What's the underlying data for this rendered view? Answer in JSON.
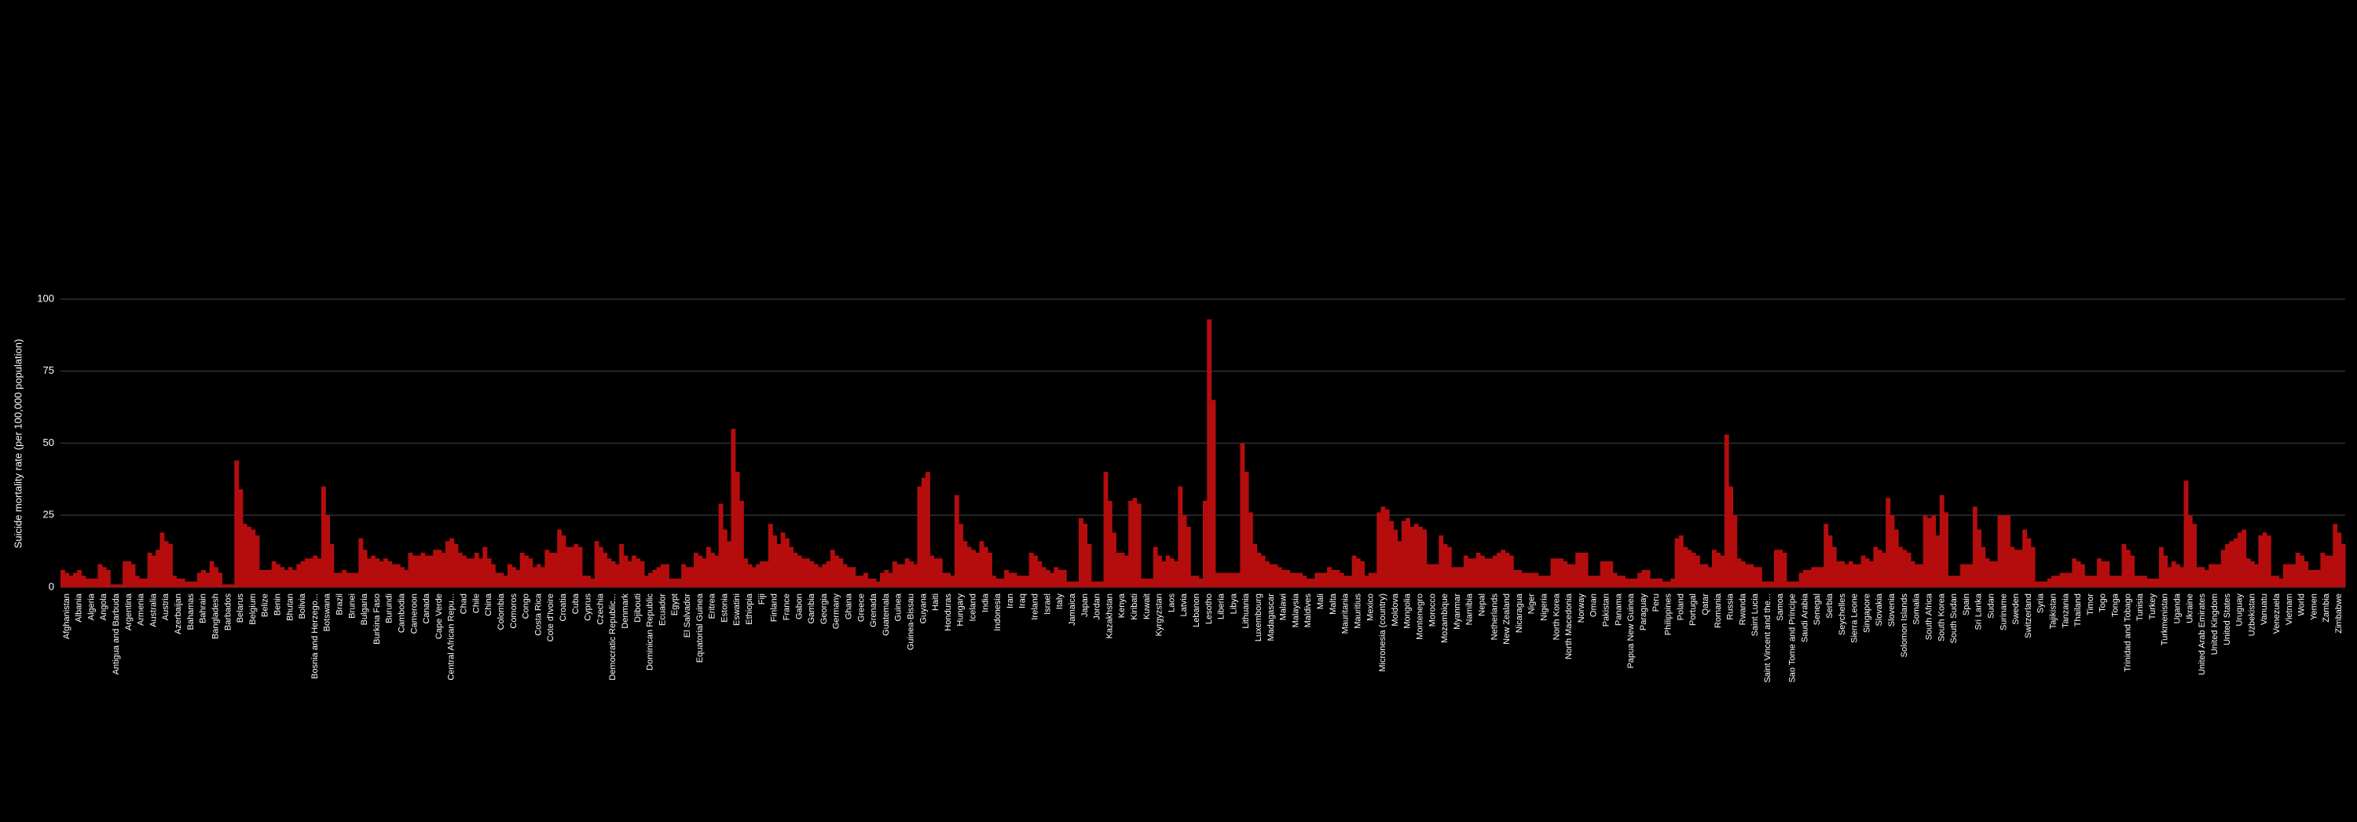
{
  "chart_data": {
    "type": "bar",
    "y_label": "Suicide mortality rate (per 100,000 population)",
    "ylim": [
      0,
      100
    ],
    "yticks": [
      0,
      25,
      50,
      75,
      100
    ],
    "grid": true,
    "color": "#b50d0d",
    "categories": [
      "Afghanistan",
      "Albania",
      "Algeria",
      "Angola",
      "Antigua and Barbuda",
      "Argentina",
      "Armenia",
      "Australia",
      "Austria",
      "Azerbaijan",
      "Bahamas",
      "Bahrain",
      "Bangladesh",
      "Barbados",
      "Belarus",
      "Belgium",
      "Belize",
      "Benin",
      "Bhutan",
      "Bolivia",
      "Bosnia and Herzego...",
      "Botswana",
      "Brazil",
      "Brunei",
      "Bulgaria",
      "Burkina Faso",
      "Burundi",
      "Cambodia",
      "Cameroon",
      "Canada",
      "Cape Verde",
      "Central African Repu...",
      "Chad",
      "Chile",
      "China",
      "Colombia",
      "Comoros",
      "Congo",
      "Costa Rica",
      "Cote d'Ivoire",
      "Croatia",
      "Cuba",
      "Cyprus",
      "Czechia",
      "Democratic Republic...",
      "Denmark",
      "Djibouti",
      "Dominican Republic",
      "Ecuador",
      "Egypt",
      "El Salvador",
      "Equatorial Guinea",
      "Eritrea",
      "Estonia",
      "Eswatini",
      "Ethiopia",
      "Fiji",
      "Finland",
      "France",
      "Gabon",
      "Gambia",
      "Georgia",
      "Germany",
      "Ghana",
      "Greece",
      "Grenada",
      "Guatemala",
      "Guinea",
      "Guinea-Bissau",
      "Guyana",
      "Haiti",
      "Honduras",
      "Hungary",
      "Iceland",
      "India",
      "Indonesia",
      "Iran",
      "Iraq",
      "Ireland",
      "Israel",
      "Italy",
      "Jamaica",
      "Japan",
      "Jordan",
      "Kazakhstan",
      "Kenya",
      "Kiribati",
      "Kuwait",
      "Kyrgyzstan",
      "Laos",
      "Latvia",
      "Lebanon",
      "Lesotho",
      "Liberia",
      "Libya",
      "Lithuania",
      "Luxembourg",
      "Madagascar",
      "Malawi",
      "Malaysia",
      "Maldives",
      "Mali",
      "Malta",
      "Mauritania",
      "Mauritius",
      "Mexico",
      "Micronesia (country)",
      "Moldova",
      "Mongolia",
      "Montenegro",
      "Morocco",
      "Mozambique",
      "Myanmar",
      "Namibia",
      "Nepal",
      "Netherlands",
      "New Zealand",
      "Nicaragua",
      "Niger",
      "Nigeria",
      "North Korea",
      "North Macedonia",
      "Norway",
      "Oman",
      "Pakistan",
      "Panama",
      "Papua New Guinea",
      "Paraguay",
      "Peru",
      "Philippines",
      "Poland",
      "Portugal",
      "Qatar",
      "Romania",
      "Russia",
      "Rwanda",
      "Saint Lucia",
      "Saint Vincent and the...",
      "Samoa",
      "Sao Tome and Principe",
      "Saudi Arabia",
      "Senegal",
      "Serbia",
      "Seychelles",
      "Sierra Leone",
      "Singapore",
      "Slovakia",
      "Slovenia",
      "Solomon Islands",
      "Somalia",
      "South Africa",
      "South Korea",
      "South Sudan",
      "Spain",
      "Sri Lanka",
      "Sudan",
      "Suriname",
      "Sweden",
      "Switzerland",
      "Syria",
      "Tajikistan",
      "Tanzania",
      "Thailand",
      "Timor",
      "Togo",
      "Tonga",
      "Trinidad and Tobago",
      "Tunisia",
      "Turkey",
      "Turkmenistan",
      "Uganda",
      "Ukraine",
      "United Arab Emirates",
      "United Kingdom",
      "United States",
      "Uruguay",
      "Uzbekistan",
      "Vanuatu",
      "Venezuela",
      "Vietnam",
      "World",
      "Yemen",
      "Zambia",
      "Zimbabwe"
    ],
    "values": [
      [
        6,
        5,
        4
      ],
      [
        5,
        6,
        4
      ],
      [
        3,
        3,
        3
      ],
      [
        8,
        7,
        6
      ],
      [
        1,
        1,
        1
      ],
      [
        9,
        9,
        8
      ],
      [
        4,
        3,
        3
      ],
      [
        12,
        11,
        13
      ],
      [
        19,
        16,
        15
      ],
      [
        4,
        3,
        3
      ],
      [
        2,
        2,
        2
      ],
      [
        5,
        6,
        5
      ],
      [
        9,
        7,
        5
      ],
      [
        1,
        1,
        1
      ],
      [
        44,
        34,
        22
      ],
      [
        21,
        20,
        18
      ],
      [
        6,
        6,
        6
      ],
      [
        9,
        8,
        7
      ],
      [
        6,
        7,
        6
      ],
      [
        8,
        9,
        10
      ],
      [
        10,
        11,
        10
      ],
      [
        35,
        25,
        15
      ],
      [
        5,
        5,
        6
      ],
      [
        5,
        5,
        5
      ],
      [
        17,
        13,
        10
      ],
      [
        11,
        10,
        9
      ],
      [
        10,
        9,
        8
      ],
      [
        8,
        7,
        6
      ],
      [
        12,
        11,
        11
      ],
      [
        12,
        11,
        11
      ],
      [
        13,
        13,
        12
      ],
      [
        16,
        17,
        15
      ],
      [
        12,
        11,
        10
      ],
      [
        10,
        12,
        10
      ],
      [
        14,
        10,
        8
      ],
      [
        5,
        5,
        4
      ],
      [
        8,
        7,
        6
      ],
      [
        12,
        11,
        10
      ],
      [
        7,
        8,
        7
      ],
      [
        13,
        12,
        12
      ],
      [
        20,
        18,
        14
      ],
      [
        14,
        15,
        14
      ],
      [
        4,
        4,
        3
      ],
      [
        16,
        14,
        12
      ],
      [
        10,
        9,
        8
      ],
      [
        15,
        11,
        9
      ],
      [
        11,
        10,
        9
      ],
      [
        4,
        5,
        6
      ],
      [
        7,
        8,
        8
      ],
      [
        3,
        3,
        3
      ],
      [
        8,
        7,
        7
      ],
      [
        12,
        11,
        10
      ],
      [
        14,
        12,
        11
      ],
      [
        29,
        20,
        16
      ],
      [
        55,
        40,
        30
      ],
      [
        10,
        8,
        7
      ],
      [
        8,
        9,
        9
      ],
      [
        22,
        18,
        15
      ],
      [
        19,
        17,
        14
      ],
      [
        12,
        11,
        10
      ],
      [
        10,
        9,
        8
      ],
      [
        7,
        8,
        9
      ],
      [
        13,
        11,
        10
      ],
      [
        8,
        7,
        7
      ],
      [
        4,
        4,
        5
      ],
      [
        3,
        3,
        2
      ],
      [
        5,
        6,
        5
      ],
      [
        9,
        8,
        8
      ],
      [
        10,
        9,
        8
      ],
      [
        35,
        38,
        40
      ],
      [
        11,
        10,
        10
      ],
      [
        5,
        5,
        4
      ],
      [
        32,
        22,
        16
      ],
      [
        14,
        13,
        12
      ],
      [
        16,
        14,
        12
      ],
      [
        4,
        3,
        3
      ],
      [
        6,
        5,
        5
      ],
      [
        4,
        4,
        4
      ],
      [
        12,
        11,
        9
      ],
      [
        7,
        6,
        5
      ],
      [
        7,
        6,
        6
      ],
      [
        2,
        2,
        2
      ],
      [
        24,
        22,
        15
      ],
      [
        2,
        2,
        2
      ],
      [
        40,
        30,
        19
      ],
      [
        12,
        12,
        11
      ],
      [
        30,
        31,
        29
      ],
      [
        3,
        3,
        3
      ],
      [
        14,
        11,
        9
      ],
      [
        11,
        10,
        9
      ],
      [
        35,
        25,
        21
      ],
      [
        4,
        4,
        3
      ],
      [
        30,
        93,
        65
      ],
      [
        5,
        5,
        5
      ],
      [
        5,
        5,
        5
      ],
      [
        50,
        40,
        26
      ],
      [
        15,
        12,
        11
      ],
      [
        9,
        8,
        8
      ],
      [
        7,
        6,
        6
      ],
      [
        5,
        5,
        5
      ],
      [
        4,
        3,
        3
      ],
      [
        5,
        5,
        5
      ],
      [
        7,
        6,
        6
      ],
      [
        5,
        4,
        4
      ],
      [
        11,
        10,
        9
      ],
      [
        4,
        5,
        5
      ],
      [
        26,
        28,
        27
      ],
      [
        23,
        20,
        16
      ],
      [
        23,
        24,
        21
      ],
      [
        22,
        21,
        20
      ],
      [
        8,
        8,
        8
      ],
      [
        18,
        15,
        14
      ],
      [
        7,
        7,
        7
      ],
      [
        11,
        10,
        10
      ],
      [
        12,
        11,
        10
      ],
      [
        10,
        11,
        12
      ],
      [
        13,
        12,
        11
      ],
      [
        6,
        6,
        5
      ],
      [
        5,
        5,
        5
      ],
      [
        4,
        4,
        4
      ],
      [
        10,
        10,
        10
      ],
      [
        9,
        8,
        8
      ],
      [
        12,
        12,
        12
      ],
      [
        4,
        4,
        4
      ],
      [
        9,
        9,
        9
      ],
      [
        5,
        4,
        4
      ],
      [
        3,
        3,
        3
      ],
      [
        5,
        6,
        6
      ],
      [
        3,
        3,
        3
      ],
      [
        2,
        2,
        3
      ],
      [
        17,
        18,
        14
      ],
      [
        13,
        12,
        11
      ],
      [
        8,
        8,
        7
      ],
      [
        13,
        12,
        11
      ],
      [
        53,
        35,
        25
      ],
      [
        10,
        9,
        8
      ],
      [
        8,
        7,
        7
      ],
      [
        2,
        2,
        2
      ],
      [
        13,
        13,
        12
      ],
      [
        2,
        2,
        2
      ],
      [
        5,
        6,
        6
      ],
      [
        7,
        7,
        7
      ],
      [
        22,
        18,
        14
      ],
      [
        9,
        9,
        8
      ],
      [
        9,
        8,
        8
      ],
      [
        11,
        10,
        9
      ],
      [
        14,
        13,
        12
      ],
      [
        31,
        25,
        20
      ],
      [
        14,
        13,
        12
      ],
      [
        9,
        8,
        8
      ],
      [
        25,
        24,
        25
      ],
      [
        18,
        32,
        26
      ],
      [
        4,
        4,
        4
      ],
      [
        8,
        8,
        8
      ],
      [
        28,
        20,
        14
      ],
      [
        10,
        9,
        9
      ],
      [
        25,
        25,
        25
      ],
      [
        14,
        13,
        13
      ],
      [
        20,
        17,
        14
      ],
      [
        2,
        2,
        2
      ],
      [
        3,
        4,
        4
      ],
      [
        5,
        5,
        5
      ],
      [
        10,
        9,
        8
      ],
      [
        4,
        4,
        4
      ],
      [
        10,
        9,
        9
      ],
      [
        4,
        4,
        4
      ],
      [
        15,
        13,
        11
      ],
      [
        4,
        4,
        4
      ],
      [
        3,
        3,
        3
      ],
      [
        14,
        11,
        7
      ],
      [
        9,
        8,
        7
      ],
      [
        37,
        25,
        22
      ],
      [
        7,
        7,
        6
      ],
      [
        8,
        8,
        8
      ],
      [
        13,
        15,
        16
      ],
      [
        17,
        19,
        20
      ],
      [
        10,
        9,
        8
      ],
      [
        18,
        19,
        18
      ],
      [
        4,
        4,
        3
      ],
      [
        8,
        8,
        8
      ],
      [
        12,
        11,
        9
      ],
      [
        6,
        6,
        6
      ],
      [
        12,
        11,
        11
      ],
      [
        22,
        19,
        15
      ]
    ]
  }
}
